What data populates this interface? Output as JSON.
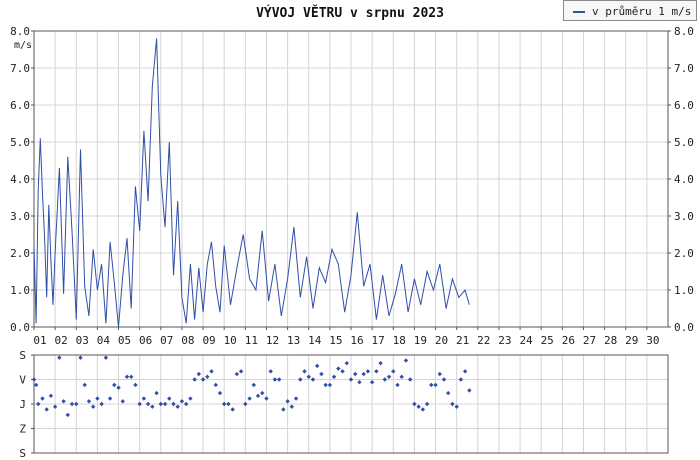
{
  "chart_data": [
    {
      "type": "line",
      "title": "VÝVOJ VĚTRU v srpnu 2023",
      "ylabel": "m/s",
      "ylim": [
        0,
        8
      ],
      "yticks": [
        "0.0",
        "1.0",
        "2.0",
        "3.0",
        "4.0",
        "5.0",
        "6.0",
        "7.0",
        "8.0"
      ],
      "xticks": [
        "01",
        "02",
        "03",
        "04",
        "05",
        "06",
        "07",
        "08",
        "09",
        "10",
        "11",
        "12",
        "13",
        "14",
        "15",
        "16",
        "17",
        "18",
        "19",
        "20",
        "21",
        "22",
        "23",
        "24",
        "25",
        "26",
        "27",
        "28",
        "29",
        "30"
      ],
      "xlim": [
        1,
        31
      ],
      "grid": true,
      "legend_position": "top-right",
      "series": [
        {
          "name": "v průměru 1 m/s",
          "color": "#2f4fa8",
          "x": [
            1.0,
            1.1,
            1.2,
            1.3,
            1.4,
            1.5,
            1.6,
            1.7,
            1.8,
            1.9,
            2.0,
            2.2,
            2.4,
            2.6,
            2.8,
            3.0,
            3.2,
            3.4,
            3.6,
            3.8,
            4.0,
            4.2,
            4.4,
            4.6,
            4.8,
            5.0,
            5.2,
            5.4,
            5.6,
            5.8,
            6.0,
            6.2,
            6.4,
            6.6,
            6.8,
            7.0,
            7.2,
            7.4,
            7.5,
            7.6,
            7.8,
            8.0,
            8.2,
            8.4,
            8.6,
            8.8,
            9.0,
            9.2,
            9.4,
            9.6,
            9.8,
            10.0,
            10.3,
            10.6,
            10.9,
            11.2,
            11.5,
            11.8,
            12.1,
            12.4,
            12.7,
            13.0,
            13.3,
            13.6,
            13.9,
            14.2,
            14.5,
            14.8,
            15.1,
            15.4,
            15.7,
            16.0,
            16.3,
            16.6,
            16.9,
            17.2,
            17.5,
            17.8,
            18.1,
            18.4,
            18.7,
            19.0,
            19.3,
            19.6,
            19.9,
            20.2,
            20.5,
            20.8,
            21.1,
            21.4,
            21.6
          ],
          "values": [
            2.2,
            0.1,
            3.7,
            5.1,
            3.6,
            2.4,
            0.8,
            3.3,
            1.8,
            0.6,
            2.0,
            4.3,
            0.9,
            4.6,
            2.6,
            0.2,
            4.8,
            1.1,
            0.3,
            2.1,
            1.0,
            1.7,
            0.1,
            2.3,
            1.2,
            0.0,
            1.4,
            2.4,
            0.5,
            3.8,
            2.6,
            5.3,
            3.4,
            6.5,
            7.8,
            4.1,
            2.7,
            5.0,
            3.2,
            1.4,
            3.4,
            0.8,
            0.1,
            1.7,
            0.2,
            1.6,
            0.4,
            1.7,
            2.3,
            1.1,
            0.4,
            2.2,
            0.6,
            1.6,
            2.5,
            1.3,
            1.0,
            2.6,
            0.7,
            1.7,
            0.3,
            1.3,
            2.7,
            0.8,
            1.9,
            0.5,
            1.6,
            1.2,
            2.1,
            1.7,
            0.4,
            1.4,
            3.1,
            1.1,
            1.7,
            0.2,
            1.4,
            0.3,
            0.9,
            1.7,
            0.4,
            1.3,
            0.6,
            1.5,
            1.0,
            1.7,
            0.5,
            1.3,
            0.8,
            1.0,
            0.6
          ]
        }
      ]
    },
    {
      "type": "scatter",
      "yticks": [
        "S",
        "V",
        "J",
        "Z",
        "S"
      ],
      "y_categories": [
        "S",
        "Z",
        "J",
        "V",
        "S"
      ],
      "xlim": [
        1,
        31
      ],
      "grid": true,
      "series": [
        {
          "name": "",
          "color": "#2f4fa8",
          "x": [
            1.0,
            1.1,
            1.2,
            1.4,
            1.6,
            1.8,
            2.0,
            2.2,
            2.4,
            2.6,
            2.8,
            3.0,
            3.2,
            3.4,
            3.6,
            3.8,
            4.0,
            4.2,
            4.4,
            4.6,
            4.8,
            5.0,
            5.2,
            5.4,
            5.6,
            5.8,
            6.0,
            6.2,
            6.4,
            6.6,
            6.8,
            7.0,
            7.2,
            7.4,
            7.6,
            7.8,
            8.0,
            8.2,
            8.4,
            8.6,
            8.8,
            9.0,
            9.2,
            9.4,
            9.6,
            9.8,
            10.0,
            10.2,
            10.4,
            10.6,
            10.8,
            11.0,
            11.2,
            11.4,
            11.6,
            11.8,
            12.0,
            12.2,
            12.4,
            12.6,
            12.8,
            13.0,
            13.2,
            13.4,
            13.6,
            13.8,
            14.0,
            14.2,
            14.4,
            14.6,
            14.8,
            15.0,
            15.2,
            15.4,
            15.6,
            15.8,
            16.0,
            16.2,
            16.4,
            16.6,
            16.8,
            17.0,
            17.2,
            17.4,
            17.6,
            17.8,
            18.0,
            18.2,
            18.4,
            18.6,
            18.8,
            19.0,
            19.2,
            19.4,
            19.6,
            19.8,
            20.0,
            20.2,
            20.4,
            20.6,
            20.8,
            21.0,
            21.2,
            21.4,
            21.6
          ],
          "values": [
            270,
            250,
            180,
            200,
            160,
            210,
            170,
            350,
            190,
            140,
            180,
            180,
            350,
            250,
            190,
            170,
            200,
            180,
            350,
            200,
            250,
            240,
            190,
            280,
            280,
            250,
            180,
            200,
            180,
            170,
            220,
            180,
            180,
            200,
            180,
            170,
            190,
            180,
            200,
            270,
            290,
            270,
            280,
            300,
            250,
            220,
            180,
            180,
            160,
            290,
            300,
            180,
            200,
            250,
            210,
            220,
            200,
            300,
            270,
            270,
            160,
            190,
            170,
            200,
            270,
            300,
            280,
            270,
            320,
            290,
            250,
            250,
            280,
            310,
            300,
            330,
            270,
            290,
            260,
            290,
            300,
            260,
            300,
            330,
            270,
            280,
            300,
            250,
            280,
            340,
            270,
            180,
            170,
            160,
            180,
            250,
            250,
            290,
            270,
            220,
            180,
            170,
            270,
            300,
            230
          ]
        }
      ]
    }
  ]
}
